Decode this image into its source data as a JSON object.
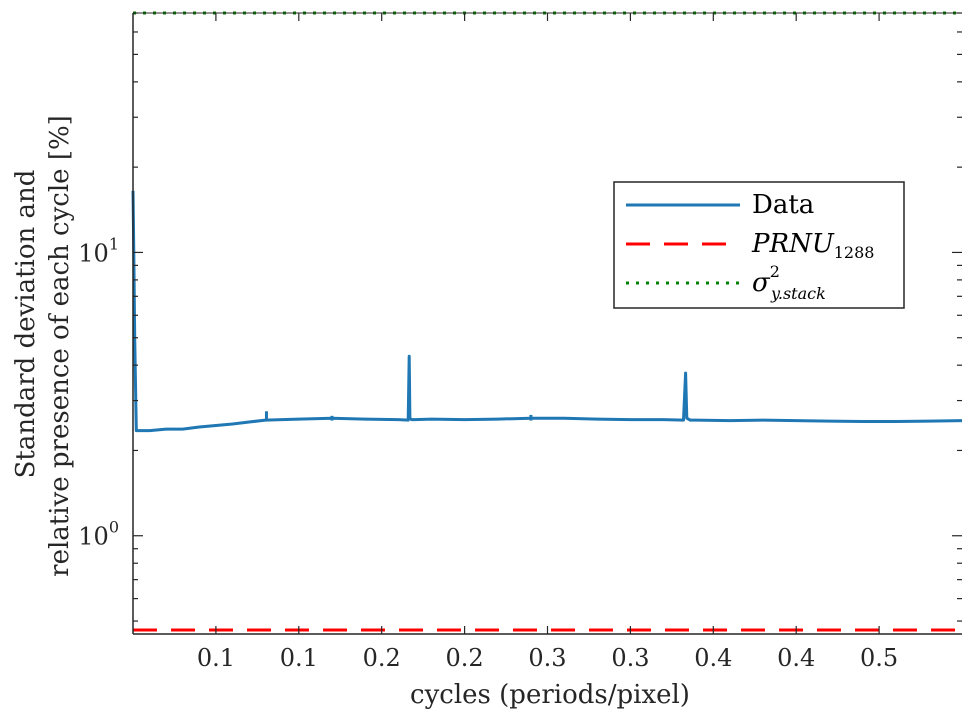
{
  "chart_data": {
    "type": "line",
    "xlabel": "cycles (periods/pixel)",
    "ylabel": [
      "Standard deviation and",
      "relative presence of each cycle [%]"
    ],
    "y_scale": "log",
    "xlim": [
      0,
      0.5
    ],
    "ylim": [
      0.45,
      70
    ],
    "x_ticks": [
      {
        "value": 0.05,
        "label": "0.1"
      },
      {
        "value": 0.1,
        "label": "0.1"
      },
      {
        "value": 0.15,
        "label": "0.2"
      },
      {
        "value": 0.2,
        "label": "0.2"
      },
      {
        "value": 0.25,
        "label": "0.3"
      },
      {
        "value": 0.3,
        "label": "0.3"
      },
      {
        "value": 0.35,
        "label": "0.4"
      },
      {
        "value": 0.4,
        "label": "0.4"
      },
      {
        "value": 0.45,
        "label": "0.5"
      }
    ],
    "y_ticks": [
      {
        "value": 1,
        "base": "10",
        "exp": "0"
      },
      {
        "value": 10,
        "base": "10",
        "exp": "1"
      }
    ],
    "grid": false,
    "legend_position": "right",
    "series": [
      {
        "name": "Data",
        "style": "solid",
        "color": "#1f77b4",
        "x": [
          0,
          0.0005,
          0.001,
          0.002,
          0.01,
          0.02,
          0.03,
          0.04,
          0.05,
          0.06,
          0.07,
          0.08,
          0.1,
          0.12,
          0.14,
          0.16,
          0.166,
          0.1666,
          0.167,
          0.168,
          0.17,
          0.18,
          0.2,
          0.22,
          0.24,
          0.26,
          0.28,
          0.3,
          0.32,
          0.332,
          0.3333,
          0.334,
          0.336,
          0.34,
          0.36,
          0.38,
          0.4,
          0.42,
          0.44,
          0.46,
          0.48,
          0.5
        ],
        "y": [
          16.5,
          10,
          5,
          2.35,
          2.35,
          2.38,
          2.38,
          2.42,
          2.45,
          2.48,
          2.52,
          2.56,
          2.58,
          2.6,
          2.58,
          2.57,
          2.56,
          4.3,
          2.6,
          2.57,
          2.57,
          2.58,
          2.57,
          2.58,
          2.6,
          2.6,
          2.58,
          2.57,
          2.57,
          2.56,
          3.75,
          2.6,
          2.56,
          2.56,
          2.55,
          2.56,
          2.55,
          2.54,
          2.53,
          2.53,
          2.54,
          2.55
        ],
        "noise": [
          {
            "x": 0.04,
            "y": 2.55
          },
          {
            "x": 0.0805,
            "y": 2.75
          },
          {
            "x": 0.12,
            "y": 2.65
          },
          {
            "x": 0.24,
            "y": 2.67
          }
        ]
      },
      {
        "name": "PRNU",
        "name_subscript": "1288",
        "style": "dashed",
        "color": "#ff0000",
        "x": [
          0,
          0.5
        ],
        "y": [
          0.465,
          0.465
        ]
      },
      {
        "name": "σ",
        "name_superscript": "2",
        "name_subscript": "y.stack",
        "style": "dotted",
        "color": "#008000",
        "x": [
          0,
          0.5
        ],
        "y": [
          70,
          70
        ]
      }
    ]
  }
}
